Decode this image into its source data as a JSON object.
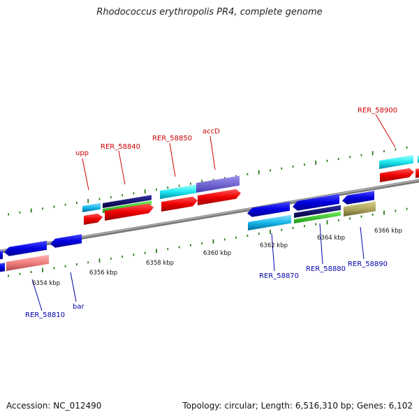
{
  "title": "Rhodococcus erythropolis PR4, complete genome",
  "footer": {
    "accession": "Accession: NC_012490",
    "info": "Topology: circular; Length: 6,516,310 bp; Genes: 6,102"
  },
  "colors": {
    "backbone": "#7a7a7a",
    "forward_label": "#cc0000",
    "reverse_label": "#0000aa",
    "tick": "#2a7a1a"
  },
  "tick_labels": [
    "6354 kbp",
    "6356 kbp",
    "6358 kbp",
    "6360 kbp",
    "6362 kbp",
    "6364 kbp",
    "6366 kbp"
  ],
  "gene_labels": {
    "upp": "upp",
    "rer_58840": "RER_58840",
    "rer_58850": "RER_58850",
    "accd": "accD",
    "rer_58900": "RER_58900",
    "rer_58810": "RER_58810",
    "bar": "bar",
    "rer_58870": "RER_58870",
    "rer_58880": "RER_58880",
    "rer_58890": "RER_58890"
  }
}
